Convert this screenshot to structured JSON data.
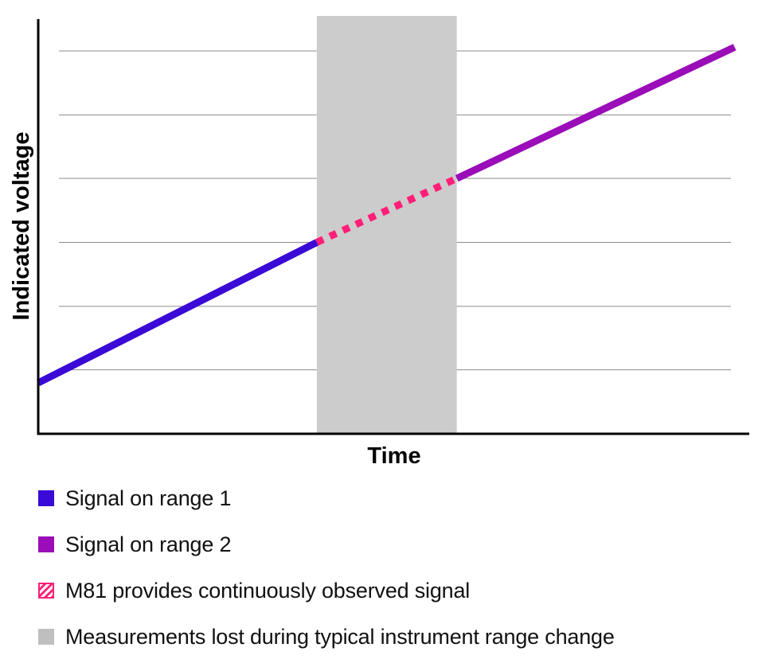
{
  "chart_data": {
    "type": "line",
    "xlabel": "Time",
    "ylabel": "Indicated voltage",
    "xlim": [
      0,
      100
    ],
    "ylim": [
      0,
      100
    ],
    "grid": true,
    "y_gridlines": [
      16.7,
      33.3,
      50,
      66.7,
      83.3,
      100
    ],
    "shaded_region": {
      "name": "Measurements lost during typical instrument range change",
      "x_start": 39.4,
      "x_end": 59.2,
      "color": "#cccccc"
    },
    "series": [
      {
        "name": "Signal on range 1",
        "style": "solid",
        "color": "#3a0ad6",
        "x": [
          0,
          39.4
        ],
        "y": [
          13.3,
          50
        ]
      },
      {
        "name": "M81 provides continuously observed signal",
        "style": "dashed",
        "color": "#ff1f78",
        "x": [
          39.4,
          59.2
        ],
        "y": [
          50,
          66.7
        ]
      },
      {
        "name": "Signal on range 2",
        "style": "solid",
        "color": "#9a0db8",
        "x": [
          59.2,
          98.5
        ],
        "y": [
          66.7,
          101
        ]
      }
    ]
  },
  "legend": {
    "items": [
      {
        "label": "Signal on range 1",
        "color": "#3a0ad6",
        "type": "solid"
      },
      {
        "label": "Signal on range 2",
        "color": "#9a0db8",
        "type": "solid"
      },
      {
        "label": "M81 provides continuously observed signal",
        "color": "#ff1f78",
        "type": "hatched"
      },
      {
        "label": "Measurements lost during typical instrument range change",
        "color": "#bfbfbf",
        "type": "solid"
      }
    ]
  }
}
